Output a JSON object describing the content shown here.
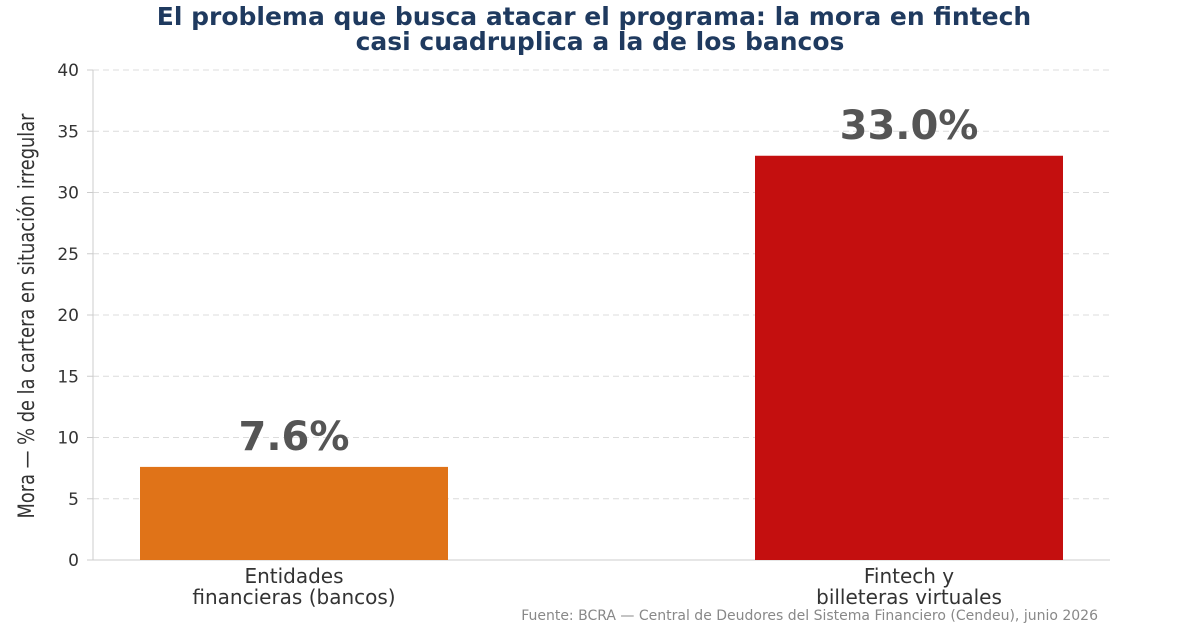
{
  "chart_data": {
    "type": "bar",
    "title_line1": "El problema que busca atacar el programa: la mora en fintech",
    "title_line2": "casi cuadruplica a la de los bancos",
    "ylabel": "Mora — % de la cartera en situación irregular",
    "xlabel": "",
    "ylim": [
      0,
      40
    ],
    "yticks": [
      0,
      5,
      10,
      15,
      20,
      25,
      30,
      35,
      40
    ],
    "grid": true,
    "categories": [
      [
        "Entidades",
        "financieras (bancos)"
      ],
      [
        "Fintech y",
        "billeteras virtuales"
      ]
    ],
    "values": [
      7.6,
      33.0
    ],
    "data_labels": [
      "7.6%",
      "33.0%"
    ],
    "colors": [
      "#e07318",
      "#c40f0f"
    ],
    "source": "Fuente: BCRA — Central de Deudores del Sistema Financiero (Cendeu), junio 2026"
  }
}
